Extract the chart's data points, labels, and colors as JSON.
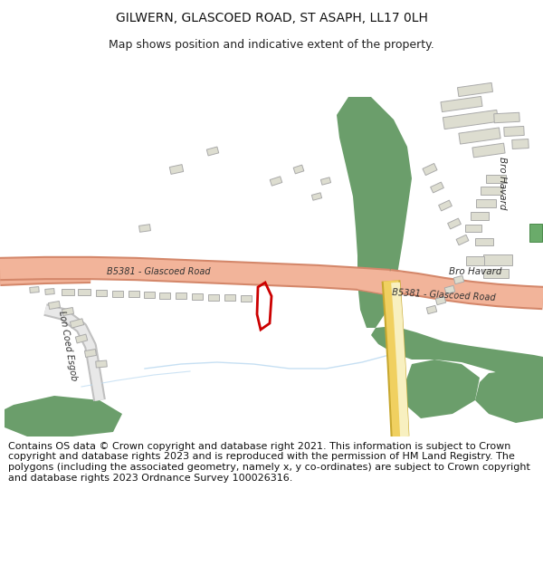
{
  "title": "GILWERN, GLASCOED ROAD, ST ASAPH, LL17 0LH",
  "subtitle": "Map shows position and indicative extent of the property.",
  "footer": "Contains OS data © Crown copyright and database right 2021. This information is subject to Crown copyright and database rights 2023 and is reproduced with the permission of HM Land Registry. The polygons (including the associated geometry, namely x, y co-ordinates) are subject to Crown copyright and database rights 2023 Ordnance Survey 100026316.",
  "bg_color": "#ffffff",
  "map_bg": "#f7f7f5",
  "road_fill": "#f2b49a",
  "road_edge": "#d4876a",
  "road_b_fill": "#f0d060",
  "road_b_edge": "#c8a830",
  "road_b_inner": "#f8f0c0",
  "green_color": "#6b9e6b",
  "green_dark": "#4a7a4a",
  "bld_fill": "#ddddd0",
  "bld_edge": "#aaaaaa",
  "bld_green": "#6aab6a",
  "water_color": "#b8d8f0",
  "plot_color": "#cc0000",
  "text_dark": "#333333",
  "title_size": 10,
  "subtitle_size": 9,
  "footer_size": 8
}
